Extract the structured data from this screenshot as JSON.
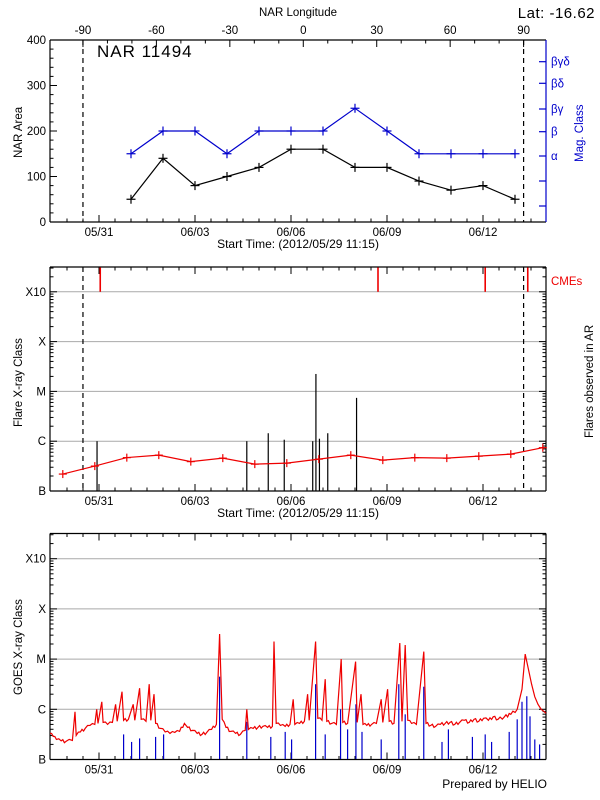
{
  "header": {
    "lat_label": "Lat: -16.62",
    "lon_axis_label": "NAR Longitude"
  },
  "captions": {
    "start_time": "Start Time: (2012/05/29 11:15)",
    "footer": "Prepared by HELIO"
  },
  "colors": {
    "blue": "#0000cc",
    "red": "#ee0000",
    "grid": "#a9a9a9",
    "black": "#000000"
  },
  "axes": {
    "date_ticks": [
      "05/31",
      "06/03",
      "06/06",
      "06/09",
      "06/12"
    ],
    "date_tick_days": [
      1.531,
      4.531,
      7.531,
      10.531,
      13.531
    ],
    "minor_tick_step_days": 0.5,
    "time_span_days": 15.5,
    "lon_major_ticks": [
      -90,
      -60,
      -30,
      0,
      30,
      60,
      90
    ],
    "lon_minor_step": 10,
    "area_major_ticks": [
      0,
      100,
      200,
      300,
      400
    ],
    "area_minor_step": 20,
    "xray_class_ticks": [
      "B",
      "C",
      "M",
      "X",
      "X10"
    ],
    "mag_class_ticks": [
      "βγδ",
      "βδ",
      "βγ",
      "β",
      "α"
    ],
    "boundary_days": [
      1.03,
      14.8
    ]
  },
  "chart_data": [
    {
      "type": "line",
      "title": "NAR 11494",
      "xlabel_top": "NAR Longitude",
      "xlabel_bottom": "Start Time: (2012/05/29 11:15)",
      "ylabel": "NAR Area",
      "ylabel_right": "Mag. Class",
      "ylim": [
        0,
        400
      ],
      "dates": [
        "06/01",
        "06/02",
        "06/03",
        "06/04",
        "06/05",
        "06/06",
        "06/07",
        "06/08",
        "06/09",
        "06/10",
        "06/11",
        "06/12",
        "06/13"
      ],
      "days": [
        2.531,
        3.531,
        4.531,
        5.531,
        6.531,
        7.531,
        8.531,
        9.531,
        10.531,
        11.531,
        12.531,
        13.531,
        14.531
      ],
      "nar_area": [
        50,
        140,
        80,
        100,
        120,
        160,
        160,
        120,
        120,
        90,
        70,
        80,
        50
      ],
      "mag_class": [
        "α",
        "β",
        "β",
        "α",
        "β",
        "β",
        "β",
        "βγ",
        "β",
        "α",
        "α",
        "α",
        "α"
      ],
      "mag_area_equiv": [
        150,
        200,
        200,
        150,
        200,
        200,
        200,
        250,
        200,
        150,
        150,
        150,
        150
      ]
    },
    {
      "type": "line",
      "ylabel": "Flare X-ray Class",
      "ylabel_right": "Flares observed in AR",
      "cme_label": "CMEs",
      "ylim_log_decades_above_B": [
        0,
        4.5
      ],
      "activity_days": [
        0.4,
        1.4,
        2.4,
        3.4,
        4.4,
        5.4,
        6.4,
        7.4,
        8.4,
        9.4,
        10.4,
        11.4,
        12.4,
        13.4,
        14.4,
        15.4
      ],
      "activity_level": [
        0.34,
        0.5,
        0.67,
        0.72,
        0.59,
        0.66,
        0.54,
        0.56,
        0.64,
        0.72,
        0.62,
        0.67,
        0.66,
        0.7,
        0.74,
        0.87
      ],
      "flares": [
        {
          "day": 1.47,
          "level": 1.0,
          "class": "C1.0"
        },
        {
          "day": 6.15,
          "level": 1.0,
          "class": "C1.0"
        },
        {
          "day": 6.82,
          "level": 1.16,
          "class": "C1.4"
        },
        {
          "day": 7.32,
          "level": 1.03,
          "class": "C1.1"
        },
        {
          "day": 8.21,
          "level": 1.0,
          "class": "C1.0"
        },
        {
          "day": 8.31,
          "level": 2.35,
          "class": "M2.2"
        },
        {
          "day": 8.42,
          "level": 1.05,
          "class": "C1.1"
        },
        {
          "day": 8.68,
          "level": 1.16,
          "class": "C1.4"
        },
        {
          "day": 9.58,
          "level": 1.87,
          "class": "C7.4"
        }
      ],
      "cme_days": [
        1.57,
        10.25,
        13.6,
        14.93
      ]
    },
    {
      "type": "line",
      "ylabel": "GOES X-ray Class",
      "ylim_log_decades_above_B": [
        0,
        4.5
      ],
      "major_flares": [
        {
          "day": 5.3,
          "class": "M3"
        },
        {
          "day": 7.0,
          "class": "M2"
        },
        {
          "day": 8.3,
          "class": "M2"
        },
        {
          "day": 9.1,
          "class": "M1"
        },
        {
          "day": 10.93,
          "class": "M2"
        },
        {
          "day": 11.1,
          "class": "M2"
        },
        {
          "day": 11.68,
          "class": "M1"
        },
        {
          "day": 14.85,
          "class": "M1"
        }
      ],
      "goes_curve": [
        [
          0.0,
          0.52
        ],
        [
          0.1,
          0.46
        ],
        [
          0.2,
          0.4
        ],
        [
          0.35,
          0.37
        ],
        [
          0.5,
          0.36
        ],
        [
          0.6,
          0.4
        ],
        [
          0.7,
          0.38
        ],
        [
          0.78,
          0.95
        ],
        [
          0.82,
          0.48
        ],
        [
          0.95,
          0.55
        ],
        [
          1.1,
          0.62
        ],
        [
          1.25,
          0.68
        ],
        [
          1.4,
          0.7
        ],
        [
          1.46,
          1.0
        ],
        [
          1.5,
          0.72
        ],
        [
          1.62,
          1.15
        ],
        [
          1.66,
          0.74
        ],
        [
          1.8,
          0.7
        ],
        [
          1.95,
          0.74
        ],
        [
          2.05,
          1.1
        ],
        [
          2.1,
          0.76
        ],
        [
          2.25,
          1.35
        ],
        [
          2.3,
          0.78
        ],
        [
          2.45,
          0.8
        ],
        [
          2.6,
          1.1
        ],
        [
          2.65,
          0.78
        ],
        [
          2.8,
          1.42
        ],
        [
          2.85,
          0.8
        ],
        [
          3.0,
          0.76
        ],
        [
          3.1,
          1.5
        ],
        [
          3.15,
          0.78
        ],
        [
          3.25,
          1.3
        ],
        [
          3.3,
          0.72
        ],
        [
          3.45,
          0.62
        ],
        [
          3.6,
          0.55
        ],
        [
          3.75,
          0.52
        ],
        [
          3.9,
          0.54
        ],
        [
          4.05,
          0.56
        ],
        [
          4.2,
          0.72
        ],
        [
          4.3,
          0.64
        ],
        [
          4.45,
          0.58
        ],
        [
          4.6,
          0.52
        ],
        [
          4.75,
          0.5
        ],
        [
          4.9,
          0.54
        ],
        [
          5.05,
          0.6
        ],
        [
          5.2,
          0.7
        ],
        [
          5.3,
          2.5
        ],
        [
          5.38,
          0.8
        ],
        [
          5.5,
          0.64
        ],
        [
          5.65,
          0.56
        ],
        [
          5.8,
          0.52
        ],
        [
          5.95,
          0.5
        ],
        [
          6.1,
          0.58
        ],
        [
          6.15,
          1.0
        ],
        [
          6.2,
          0.6
        ],
        [
          6.35,
          0.62
        ],
        [
          6.5,
          0.64
        ],
        [
          6.65,
          0.66
        ],
        [
          6.8,
          0.64
        ],
        [
          6.95,
          0.66
        ],
        [
          7.0,
          2.35
        ],
        [
          7.07,
          0.72
        ],
        [
          7.2,
          0.68
        ],
        [
          7.35,
          0.66
        ],
        [
          7.5,
          0.7
        ],
        [
          7.6,
          1.2
        ],
        [
          7.65,
          0.7
        ],
        [
          7.8,
          0.72
        ],
        [
          7.95,
          0.76
        ],
        [
          8.05,
          1.3
        ],
        [
          8.1,
          0.78
        ],
        [
          8.3,
          2.35
        ],
        [
          8.37,
          0.82
        ],
        [
          8.5,
          0.78
        ],
        [
          8.6,
          1.6
        ],
        [
          8.65,
          0.76
        ],
        [
          8.8,
          0.72
        ],
        [
          8.95,
          0.7
        ],
        [
          9.1,
          2.0
        ],
        [
          9.15,
          0.74
        ],
        [
          9.3,
          0.72
        ],
        [
          9.55,
          1.95
        ],
        [
          9.6,
          0.74
        ],
        [
          9.72,
          1.3
        ],
        [
          9.78,
          0.7
        ],
        [
          9.9,
          0.68
        ],
        [
          10.05,
          0.7
        ],
        [
          10.2,
          0.72
        ],
        [
          10.35,
          1.2
        ],
        [
          10.4,
          0.74
        ],
        [
          10.55,
          1.4
        ],
        [
          10.6,
          0.76
        ],
        [
          10.75,
          0.72
        ],
        [
          10.93,
          2.32
        ],
        [
          11.0,
          0.76
        ],
        [
          11.1,
          2.28
        ],
        [
          11.18,
          0.78
        ],
        [
          11.3,
          0.72
        ],
        [
          11.45,
          0.7
        ],
        [
          11.68,
          2.15
        ],
        [
          11.75,
          0.72
        ],
        [
          11.9,
          0.68
        ],
        [
          12.05,
          0.66
        ],
        [
          12.2,
          0.7
        ],
        [
          12.35,
          0.72
        ],
        [
          12.5,
          0.74
        ],
        [
          12.65,
          0.7
        ],
        [
          12.8,
          0.74
        ],
        [
          12.95,
          0.78
        ],
        [
          13.1,
          0.74
        ],
        [
          13.25,
          0.8
        ],
        [
          13.4,
          0.76
        ],
        [
          13.55,
          0.82
        ],
        [
          13.7,
          0.78
        ],
        [
          13.85,
          0.85
        ],
        [
          14.0,
          0.8
        ],
        [
          14.2,
          0.85
        ],
        [
          14.4,
          0.9
        ],
        [
          14.6,
          1.0
        ],
        [
          14.75,
          1.4
        ],
        [
          14.85,
          2.1
        ],
        [
          14.95,
          1.8
        ],
        [
          15.05,
          1.5
        ],
        [
          15.15,
          1.25
        ],
        [
          15.25,
          1.1
        ],
        [
          15.35,
          1.0
        ],
        [
          15.45,
          0.95
        ],
        [
          15.5,
          0.92
        ]
      ],
      "blue_spikes": [
        [
          2.3,
          0.5
        ],
        [
          2.55,
          0.35
        ],
        [
          2.8,
          0.42
        ],
        [
          3.3,
          0.45
        ],
        [
          3.55,
          0.5
        ],
        [
          5.3,
          1.65
        ],
        [
          6.15,
          0.75
        ],
        [
          6.9,
          0.45
        ],
        [
          7.35,
          0.55
        ],
        [
          7.55,
          0.4
        ],
        [
          8.3,
          1.5
        ],
        [
          8.6,
          0.5
        ],
        [
          9.08,
          1.0
        ],
        [
          9.3,
          0.6
        ],
        [
          9.56,
          1.1
        ],
        [
          9.75,
          0.55
        ],
        [
          10.35,
          0.4
        ],
        [
          10.9,
          1.5
        ],
        [
          11.1,
          0.9
        ],
        [
          11.68,
          1.45
        ],
        [
          12.25,
          0.35
        ],
        [
          12.45,
          0.6
        ],
        [
          13.2,
          0.45
        ],
        [
          13.6,
          0.5
        ],
        [
          13.8,
          0.35
        ],
        [
          14.35,
          0.55
        ],
        [
          14.6,
          0.8
        ],
        [
          14.75,
          1.15
        ],
        [
          14.9,
          1.26
        ],
        [
          15.0,
          0.86
        ],
        [
          15.15,
          0.4
        ],
        [
          15.3,
          0.3
        ]
      ]
    }
  ]
}
